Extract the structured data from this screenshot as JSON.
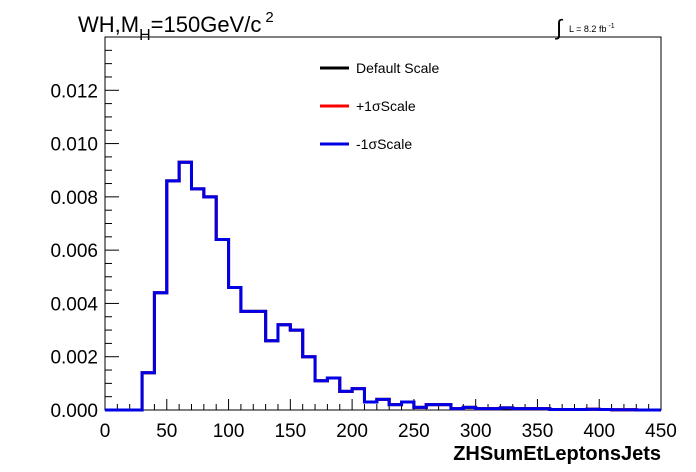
{
  "header": {
    "title_main": "WH,M",
    "title_sub": "H",
    "title_rest": "=150GeV/c",
    "title_sup": "2",
    "lumi_label": "L = 8.2 fb",
    "lumi_sup": "-1"
  },
  "colors": {
    "default": "#000000",
    "plus": "#ff0000",
    "minus": "#0000e6"
  },
  "chart_data": {
    "type": "line",
    "style": "step-histogram",
    "xlabel": "ZHSumEtLeptonsJets",
    "ylabel": "",
    "xlim": [
      0,
      450
    ],
    "ylim": [
      0,
      0.014
    ],
    "bin_width": 10,
    "xticks": [
      "0",
      "50",
      "100",
      "150",
      "200",
      "250",
      "300",
      "350",
      "400",
      "450"
    ],
    "yticks": [
      "0.000",
      "0.002",
      "0.004",
      "0.006",
      "0.008",
      "0.010",
      "0.012"
    ],
    "grid": false,
    "legend_position": "top-center",
    "legend": [
      {
        "name": "Default Scale",
        "color": "#000000"
      },
      {
        "name": "+1σScale",
        "color": "#ff0000"
      },
      {
        "name": "-1σScale",
        "color": "#0000e6"
      }
    ],
    "bin_edges_start": 0,
    "values": [
      0,
      0,
      0,
      0.0014,
      0.0044,
      0.0086,
      0.0093,
      0.0083,
      0.008,
      0.0064,
      0.0046,
      0.0037,
      0.0037,
      0.0026,
      0.0032,
      0.003,
      0.002,
      0.0011,
      0.0012,
      0.0007,
      0.0008,
      0.0003,
      0.0004,
      0.0002,
      0.0003,
      0.0001,
      0.0002,
      0.0002,
      5e-05,
      0.0001,
      5e-05,
      5e-05,
      8e-05,
      5e-05,
      5e-05,
      5e-05,
      2e-05,
      2e-05,
      2e-05,
      3e-05,
      2e-05,
      1e-05,
      1e-05,
      0.0,
      0.0
    ]
  }
}
